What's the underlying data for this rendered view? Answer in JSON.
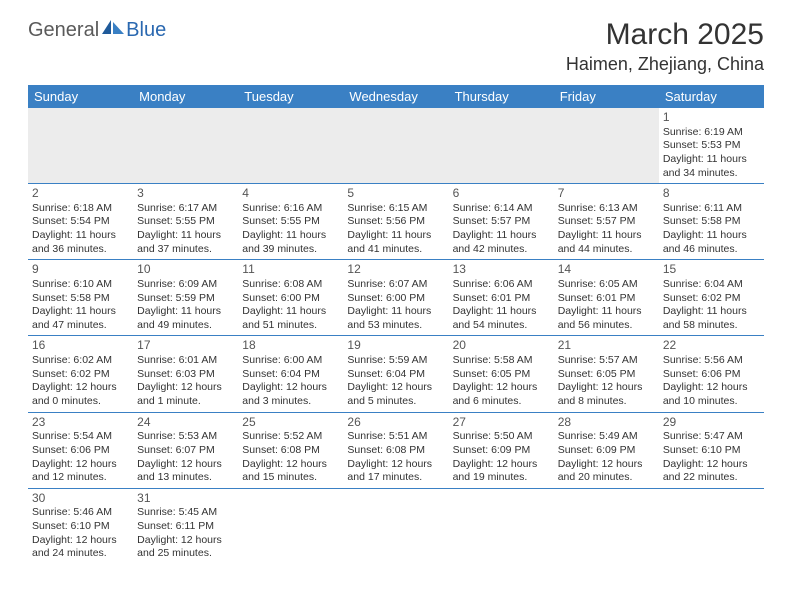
{
  "logo": {
    "text1": "General",
    "text2": "Blue"
  },
  "title": "March 2025",
  "location": "Haimen, Zhejiang, China",
  "colors": {
    "header_bg": "#3a80c4",
    "header_text": "#ffffff",
    "border": "#3a80c4",
    "logo_gray": "#5a5a5a",
    "logo_blue": "#2a68b0",
    "blank_bg": "#ececec"
  },
  "weekdays": [
    "Sunday",
    "Monday",
    "Tuesday",
    "Wednesday",
    "Thursday",
    "Friday",
    "Saturday"
  ],
  "weeks": [
    [
      null,
      null,
      null,
      null,
      null,
      null,
      {
        "n": "1",
        "sr": "Sunrise: 6:19 AM",
        "ss": "Sunset: 5:53 PM",
        "d1": "Daylight: 11 hours",
        "d2": "and 34 minutes."
      }
    ],
    [
      {
        "n": "2",
        "sr": "Sunrise: 6:18 AM",
        "ss": "Sunset: 5:54 PM",
        "d1": "Daylight: 11 hours",
        "d2": "and 36 minutes."
      },
      {
        "n": "3",
        "sr": "Sunrise: 6:17 AM",
        "ss": "Sunset: 5:55 PM",
        "d1": "Daylight: 11 hours",
        "d2": "and 37 minutes."
      },
      {
        "n": "4",
        "sr": "Sunrise: 6:16 AM",
        "ss": "Sunset: 5:55 PM",
        "d1": "Daylight: 11 hours",
        "d2": "and 39 minutes."
      },
      {
        "n": "5",
        "sr": "Sunrise: 6:15 AM",
        "ss": "Sunset: 5:56 PM",
        "d1": "Daylight: 11 hours",
        "d2": "and 41 minutes."
      },
      {
        "n": "6",
        "sr": "Sunrise: 6:14 AM",
        "ss": "Sunset: 5:57 PM",
        "d1": "Daylight: 11 hours",
        "d2": "and 42 minutes."
      },
      {
        "n": "7",
        "sr": "Sunrise: 6:13 AM",
        "ss": "Sunset: 5:57 PM",
        "d1": "Daylight: 11 hours",
        "d2": "and 44 minutes."
      },
      {
        "n": "8",
        "sr": "Sunrise: 6:11 AM",
        "ss": "Sunset: 5:58 PM",
        "d1": "Daylight: 11 hours",
        "d2": "and 46 minutes."
      }
    ],
    [
      {
        "n": "9",
        "sr": "Sunrise: 6:10 AM",
        "ss": "Sunset: 5:58 PM",
        "d1": "Daylight: 11 hours",
        "d2": "and 47 minutes."
      },
      {
        "n": "10",
        "sr": "Sunrise: 6:09 AM",
        "ss": "Sunset: 5:59 PM",
        "d1": "Daylight: 11 hours",
        "d2": "and 49 minutes."
      },
      {
        "n": "11",
        "sr": "Sunrise: 6:08 AM",
        "ss": "Sunset: 6:00 PM",
        "d1": "Daylight: 11 hours",
        "d2": "and 51 minutes."
      },
      {
        "n": "12",
        "sr": "Sunrise: 6:07 AM",
        "ss": "Sunset: 6:00 PM",
        "d1": "Daylight: 11 hours",
        "d2": "and 53 minutes."
      },
      {
        "n": "13",
        "sr": "Sunrise: 6:06 AM",
        "ss": "Sunset: 6:01 PM",
        "d1": "Daylight: 11 hours",
        "d2": "and 54 minutes."
      },
      {
        "n": "14",
        "sr": "Sunrise: 6:05 AM",
        "ss": "Sunset: 6:01 PM",
        "d1": "Daylight: 11 hours",
        "d2": "and 56 minutes."
      },
      {
        "n": "15",
        "sr": "Sunrise: 6:04 AM",
        "ss": "Sunset: 6:02 PM",
        "d1": "Daylight: 11 hours",
        "d2": "and 58 minutes."
      }
    ],
    [
      {
        "n": "16",
        "sr": "Sunrise: 6:02 AM",
        "ss": "Sunset: 6:02 PM",
        "d1": "Daylight: 12 hours",
        "d2": "and 0 minutes."
      },
      {
        "n": "17",
        "sr": "Sunrise: 6:01 AM",
        "ss": "Sunset: 6:03 PM",
        "d1": "Daylight: 12 hours",
        "d2": "and 1 minute."
      },
      {
        "n": "18",
        "sr": "Sunrise: 6:00 AM",
        "ss": "Sunset: 6:04 PM",
        "d1": "Daylight: 12 hours",
        "d2": "and 3 minutes."
      },
      {
        "n": "19",
        "sr": "Sunrise: 5:59 AM",
        "ss": "Sunset: 6:04 PM",
        "d1": "Daylight: 12 hours",
        "d2": "and 5 minutes."
      },
      {
        "n": "20",
        "sr": "Sunrise: 5:58 AM",
        "ss": "Sunset: 6:05 PM",
        "d1": "Daylight: 12 hours",
        "d2": "and 6 minutes."
      },
      {
        "n": "21",
        "sr": "Sunrise: 5:57 AM",
        "ss": "Sunset: 6:05 PM",
        "d1": "Daylight: 12 hours",
        "d2": "and 8 minutes."
      },
      {
        "n": "22",
        "sr": "Sunrise: 5:56 AM",
        "ss": "Sunset: 6:06 PM",
        "d1": "Daylight: 12 hours",
        "d2": "and 10 minutes."
      }
    ],
    [
      {
        "n": "23",
        "sr": "Sunrise: 5:54 AM",
        "ss": "Sunset: 6:06 PM",
        "d1": "Daylight: 12 hours",
        "d2": "and 12 minutes."
      },
      {
        "n": "24",
        "sr": "Sunrise: 5:53 AM",
        "ss": "Sunset: 6:07 PM",
        "d1": "Daylight: 12 hours",
        "d2": "and 13 minutes."
      },
      {
        "n": "25",
        "sr": "Sunrise: 5:52 AM",
        "ss": "Sunset: 6:08 PM",
        "d1": "Daylight: 12 hours",
        "d2": "and 15 minutes."
      },
      {
        "n": "26",
        "sr": "Sunrise: 5:51 AM",
        "ss": "Sunset: 6:08 PM",
        "d1": "Daylight: 12 hours",
        "d2": "and 17 minutes."
      },
      {
        "n": "27",
        "sr": "Sunrise: 5:50 AM",
        "ss": "Sunset: 6:09 PM",
        "d1": "Daylight: 12 hours",
        "d2": "and 19 minutes."
      },
      {
        "n": "28",
        "sr": "Sunrise: 5:49 AM",
        "ss": "Sunset: 6:09 PM",
        "d1": "Daylight: 12 hours",
        "d2": "and 20 minutes."
      },
      {
        "n": "29",
        "sr": "Sunrise: 5:47 AM",
        "ss": "Sunset: 6:10 PM",
        "d1": "Daylight: 12 hours",
        "d2": "and 22 minutes."
      }
    ],
    [
      {
        "n": "30",
        "sr": "Sunrise: 5:46 AM",
        "ss": "Sunset: 6:10 PM",
        "d1": "Daylight: 12 hours",
        "d2": "and 24 minutes."
      },
      {
        "n": "31",
        "sr": "Sunrise: 5:45 AM",
        "ss": "Sunset: 6:11 PM",
        "d1": "Daylight: 12 hours",
        "d2": "and 25 minutes."
      },
      null,
      null,
      null,
      null,
      null
    ]
  ]
}
